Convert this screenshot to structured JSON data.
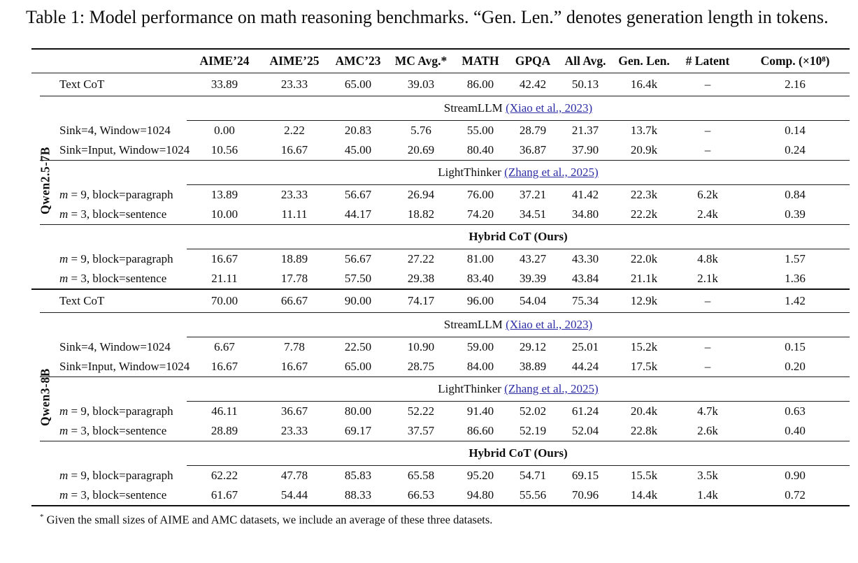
{
  "caption": "Table 1: Model performance on math reasoning benchmarks. “Gen. Len.” denotes generation length in tokens.",
  "colors": {
    "link": "#2d2da5",
    "text": "#0e0e0e",
    "rule": "#1c1c1c"
  },
  "table": {
    "columns": [
      "AIME’24",
      "AIME’25",
      "AMC’23",
      "MC Avg.*",
      "MATH",
      "GPQA",
      "All Avg.",
      "Gen. Len.",
      "# Latent",
      "Comp. (×10⁸)"
    ],
    "groups": [
      {
        "label": "Qwen2.5-7B",
        "blocks": [
          {
            "header": null,
            "rows": [
              {
                "label": "Text CoT",
                "math": false,
                "values": [
                  "33.89",
                  "23.33",
                  "65.00",
                  "39.03",
                  "86.00",
                  "42.42",
                  "50.13",
                  "16.4k",
                  "–",
                  "2.16"
                ]
              }
            ]
          },
          {
            "header": {
              "name": "StreamLLM",
              "cite": "(Xiao et al., 2023)",
              "bold": false
            },
            "rows": [
              {
                "label": "Sink=4, Window=1024",
                "math": false,
                "values": [
                  "0.00",
                  "2.22",
                  "20.83",
                  "5.76",
                  "55.00",
                  "28.79",
                  "21.37",
                  "13.7k",
                  "–",
                  "0.14"
                ]
              },
              {
                "label": "Sink=Input, Window=1024",
                "math": false,
                "values": [
                  "10.56",
                  "16.67",
                  "45.00",
                  "20.69",
                  "80.40",
                  "36.87",
                  "37.90",
                  "20.9k",
                  "–",
                  "0.24"
                ]
              }
            ]
          },
          {
            "header": {
              "name": "LightThinker",
              "cite": "(Zhang et al., 2025)",
              "bold": false
            },
            "rows": [
              {
                "label": "m = 9, block=paragraph",
                "math": true,
                "values": [
                  "13.89",
                  "23.33",
                  "56.67",
                  "26.94",
                  "76.00",
                  "37.21",
                  "41.42",
                  "22.3k",
                  "6.2k",
                  "0.84"
                ]
              },
              {
                "label": "m = 3, block=sentence",
                "math": true,
                "values": [
                  "10.00",
                  "11.11",
                  "44.17",
                  "18.82",
                  "74.20",
                  "34.51",
                  "34.80",
                  "22.2k",
                  "2.4k",
                  "0.39"
                ]
              }
            ]
          },
          {
            "header": {
              "name": "Hybrid CoT (Ours)",
              "cite": null,
              "bold": true
            },
            "rows": [
              {
                "label": "m = 9, block=paragraph",
                "math": true,
                "values": [
                  "16.67",
                  "18.89",
                  "56.67",
                  "27.22",
                  "81.00",
                  "43.27",
                  "43.30",
                  "22.0k",
                  "4.8k",
                  "1.57"
                ]
              },
              {
                "label": "m = 3, block=sentence",
                "math": true,
                "values": [
                  "21.11",
                  "17.78",
                  "57.50",
                  "29.38",
                  "83.40",
                  "39.39",
                  "43.84",
                  "21.1k",
                  "2.1k",
                  "1.36"
                ]
              }
            ]
          }
        ]
      },
      {
        "label": "Qwen3-8B",
        "blocks": [
          {
            "header": null,
            "rows": [
              {
                "label": "Text CoT",
                "math": false,
                "values": [
                  "70.00",
                  "66.67",
                  "90.00",
                  "74.17",
                  "96.00",
                  "54.04",
                  "75.34",
                  "12.9k",
                  "–",
                  "1.42"
                ]
              }
            ]
          },
          {
            "header": {
              "name": "StreamLLM",
              "cite": "(Xiao et al., 2023)",
              "bold": false
            },
            "rows": [
              {
                "label": "Sink=4, Window=1024",
                "math": false,
                "values": [
                  "6.67",
                  "7.78",
                  "22.50",
                  "10.90",
                  "59.00",
                  "29.12",
                  "25.01",
                  "15.2k",
                  "–",
                  "0.15"
                ]
              },
              {
                "label": "Sink=Input, Window=1024",
                "math": false,
                "values": [
                  "16.67",
                  "16.67",
                  "65.00",
                  "28.75",
                  "84.00",
                  "38.89",
                  "44.24",
                  "17.5k",
                  "–",
                  "0.20"
                ]
              }
            ]
          },
          {
            "header": {
              "name": "LightThinker",
              "cite": "(Zhang et al., 2025)",
              "bold": false
            },
            "rows": [
              {
                "label": "m = 9, block=paragraph",
                "math": true,
                "values": [
                  "46.11",
                  "36.67",
                  "80.00",
                  "52.22",
                  "91.40",
                  "52.02",
                  "61.24",
                  "20.4k",
                  "4.7k",
                  "0.63"
                ]
              },
              {
                "label": "m = 3, block=sentence",
                "math": true,
                "values": [
                  "28.89",
                  "23.33",
                  "69.17",
                  "37.57",
                  "86.60",
                  "52.19",
                  "52.04",
                  "22.8k",
                  "2.6k",
                  "0.40"
                ]
              }
            ]
          },
          {
            "header": {
              "name": "Hybrid CoT (Ours)",
              "cite": null,
              "bold": true
            },
            "rows": [
              {
                "label": "m = 9, block=paragraph",
                "math": true,
                "values": [
                  "62.22",
                  "47.78",
                  "85.83",
                  "65.58",
                  "95.20",
                  "54.71",
                  "69.15",
                  "15.5k",
                  "3.5k",
                  "0.90"
                ]
              },
              {
                "label": "m = 3, block=sentence",
                "math": true,
                "values": [
                  "61.67",
                  "54.44",
                  "88.33",
                  "66.53",
                  "94.80",
                  "55.56",
                  "70.96",
                  "14.4k",
                  "1.4k",
                  "0.72"
                ]
              }
            ]
          }
        ]
      }
    ]
  },
  "footnote": {
    "marker": "*",
    "text": "Given the small sizes of AIME and AMC datasets, we include an average of these three datasets."
  }
}
